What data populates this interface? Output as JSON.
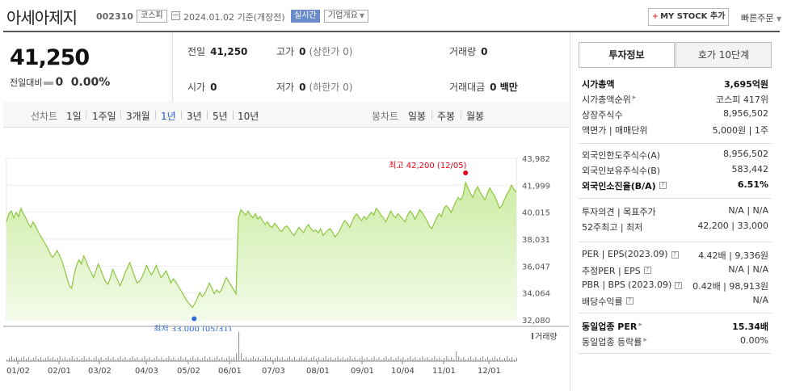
{
  "header": {
    "stock_name": "아세아제지",
    "stock_code": "002310",
    "market_badge": "코스피",
    "date_text": "2024.01.02 기준(개장전)",
    "realtime_badge": "실시간",
    "company_badge": "기업개요",
    "mystock_label": "MY STOCK 추가",
    "quick_order": "빠른주문"
  },
  "price": {
    "current": "41,250",
    "change_label": "전일대비",
    "change_value": "0",
    "change_rate": "0.00%"
  },
  "summary": {
    "prev_label": "전일",
    "prev_value": "41,250",
    "high_label": "고가",
    "high_value": "0",
    "high_sub": "(상한가 0)",
    "volume_label": "거래량",
    "volume_value": "0",
    "open_label": "시가",
    "open_value": "0",
    "low_label": "저가",
    "low_value": "0",
    "low_sub": "(하한가 0)",
    "amount_label": "거래대금",
    "amount_value": "0 백만"
  },
  "period_bar": {
    "line_label": "선차트",
    "line_items": [
      "1일",
      "1주일",
      "3개월",
      "1년",
      "3년",
      "5년",
      "10년"
    ],
    "active_index": 3,
    "candle_label": "봉차트",
    "candle_items": [
      "일봉",
      "주봉",
      "월봉"
    ]
  },
  "chart_data": {
    "type": "area",
    "y_ticks": [
      "43,982",
      "41,999",
      "40,015",
      "38,031",
      "36,047",
      "34,064",
      "32,080"
    ],
    "ylim": [
      32080,
      43982
    ],
    "x_ticks": [
      "01/02",
      "02/01",
      "03/02",
      "04/03",
      "05/02",
      "06/01",
      "07/03",
      "08/01",
      "09/01",
      "10/04",
      "11/01",
      "12/01"
    ],
    "high_annotation": "최고 42,200 (12/05)",
    "low_annotation": "최저 33,000 (05/31)",
    "high_value": 42200,
    "low_value": 33000,
    "volume_label": "거래량",
    "line_color": "#8cc63f",
    "fill_color": "#dff2c4",
    "high_color": "#e60012",
    "low_color": "#2b6cd6",
    "values": [
      39300,
      39900,
      40100,
      39600,
      40000,
      39700,
      40300,
      39900,
      39600,
      39200,
      38900,
      39300,
      39000,
      38600,
      38300,
      38000,
      37700,
      37400,
      37000,
      36700,
      36900,
      37200,
      36800,
      36400,
      35800,
      35200,
      34600,
      34400,
      35400,
      36100,
      36500,
      36200,
      36800,
      36400,
      35900,
      35600,
      35200,
      35700,
      36200,
      35800,
      35300,
      34900,
      34700,
      35200,
      35800,
      35400,
      35000,
      34600,
      35000,
      35500,
      35900,
      36300,
      35800,
      35300,
      34800,
      34900,
      35200,
      35600,
      36100,
      35700,
      35400,
      35700,
      36100,
      35600,
      35200,
      35400,
      35700,
      35300,
      34800,
      35100,
      34900,
      34600,
      34300,
      34000,
      33700,
      33400,
      33200,
      33000,
      33300,
      33700,
      34100,
      33800,
      34000,
      34400,
      34800,
      34400,
      34000,
      34300,
      34100,
      34300,
      34800,
      35200,
      34900,
      34600,
      34300,
      34000,
      39600,
      40200,
      40000,
      39800,
      40100,
      39800,
      39600,
      39900,
      39500,
      39700,
      39400,
      39100,
      39300,
      39000,
      38900,
      39200,
      39000,
      38700,
      38600,
      38900,
      39000,
      38800,
      38500,
      38300,
      38600,
      38900,
      38700,
      38500,
      38900,
      39100,
      38800,
      38600,
      38700,
      38500,
      38800,
      38300,
      38500,
      38700,
      38800,
      38500,
      38200,
      38400,
      38700,
      39100,
      39400,
      39200,
      38900,
      39300,
      39700,
      39900,
      39600,
      39400,
      39700,
      39500,
      39800,
      40000,
      39800,
      40300,
      40100,
      39800,
      39600,
      39300,
      39700,
      40100,
      39800,
      39600,
      39900,
      39700,
      39500,
      39300,
      39800,
      40100,
      39900,
      39500,
      39800,
      40200,
      40000,
      39700,
      39400,
      39000,
      38800,
      39200,
      39600,
      39900,
      39700,
      40300,
      40500,
      40300,
      40000,
      40400,
      40800,
      41100,
      40900,
      41300,
      42200,
      41800,
      41400,
      41100,
      41600,
      41900,
      41500,
      41200,
      40900,
      41400,
      41800,
      41500,
      41200,
      40800,
      40300,
      40500,
      40900,
      41300,
      41600,
      42000,
      41700,
      41500
    ]
  },
  "right_panel": {
    "tab1": "투자정보",
    "tab2": "호가 10단계",
    "sec1": [
      {
        "k": "시가총액",
        "v": "3,695억원",
        "bold": true
      },
      {
        "k": "시가총액순위",
        "v": "코스피 417위",
        "arrow": true
      },
      {
        "k": "상장주식수",
        "v": "8,956,502"
      },
      {
        "k": "액면가 | 매매단위",
        "v": "5,000원 | 1주"
      }
    ],
    "sec2": [
      {
        "k": "외국인한도주식수(A)",
        "v": "8,956,502"
      },
      {
        "k": "외국인보유주식수(B)",
        "v": "583,442"
      },
      {
        "k": "외국인소진율(B/A)",
        "v": "6.51%",
        "bold": true,
        "q": true
      }
    ],
    "sec3": [
      {
        "k": "투자의견 | 목표주가",
        "v": "N/A | N/A"
      },
      {
        "k": "52주최고 | 최저",
        "v": "42,200 | 33,000"
      }
    ],
    "sec4": [
      {
        "k": "PER | EPS(2023.09)",
        "v": "4.42배 | 9,336원",
        "q": true
      },
      {
        "k": "추정PER | EPS",
        "v": "N/A | N/A",
        "q": true
      },
      {
        "k": "PBR | BPS (2023.09)",
        "v": "0.42배 | 98,913원",
        "q": true
      },
      {
        "k": "배당수익률",
        "v": "N/A",
        "q": true
      }
    ],
    "sec5": [
      {
        "k": "동일업종 PER",
        "v": "15.34배",
        "bold": true,
        "arrow": true
      },
      {
        "k": "동일업종 등락률",
        "v": "0.00%",
        "arrow": true
      }
    ]
  }
}
